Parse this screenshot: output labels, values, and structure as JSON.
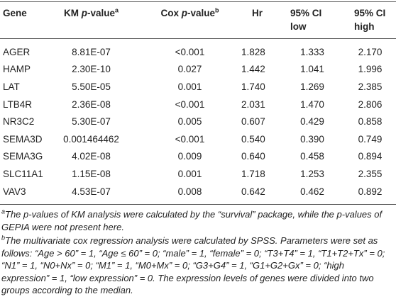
{
  "table": {
    "header": [
      {
        "text": "Gene"
      },
      {
        "prefix": "KM ",
        "italic": "p",
        "suffix": "-value",
        "sup": "a"
      },
      {
        "prefix": "Cox ",
        "italic": "p",
        "suffix": "-value",
        "sup": "b"
      },
      {
        "text": "Hr"
      },
      {
        "lines": [
          "95% CI",
          "low"
        ]
      },
      {
        "lines": [
          "95% CI",
          "high"
        ]
      }
    ],
    "rows": [
      [
        "AGER",
        "8.81E-07",
        "<0.001",
        "1.828",
        "1.333",
        "2.170"
      ],
      [
        "HAMP",
        "2.30E-10",
        "0.027",
        "1.442",
        "1.041",
        "1.996"
      ],
      [
        "LAT",
        "5.50E-05",
        "0.001",
        "1.740",
        "1.269",
        "2.385"
      ],
      [
        "LTB4R",
        "2.36E-08",
        "<0.001",
        "2.031",
        "1.470",
        "2.806"
      ],
      [
        "NR3C2",
        "5.30E-07",
        "0.005",
        "0.607",
        "0.429",
        "0.858"
      ],
      [
        "SEMA3D",
        "0.001464462",
        "<0.001",
        "0.540",
        "0.390",
        "0.749"
      ],
      [
        "SEMA3G",
        "4.02E-08",
        "0.009",
        "0.640",
        "0.458",
        "0.894"
      ],
      [
        "SLC11A1",
        "1.15E-08",
        "0.001",
        "1.718",
        "1.253",
        "2.355"
      ],
      [
        "VAV3",
        "4.53E-07",
        "0.008",
        "0.642",
        "0.462",
        "0.892"
      ]
    ]
  },
  "footnotes": [
    {
      "mark": "a",
      "text": "The p-values of KM analysis were calculated by the “survival” package, while the p-values of GEPIA were not present here."
    },
    {
      "mark": "b",
      "text": "The multivariate cox regression analysis were calculated by SPSS. Parameters were set as follows: “Age > 60” = 1, “Age ≤ 60” = 0; “male” = 1, “female” = 0; “T3+T4” = 1, “T1+T2+Tx” = 0; “N1” = 1, “N0+Nx” = 0; “M1” = 1, “M0+Mx” = 0; “G3+G4” = 1, “G1+G2+Gx” = 0; “high expression” = 1, “low expression” = 0. The expression levels of genes were divided into two groups according to the median."
    }
  ]
}
